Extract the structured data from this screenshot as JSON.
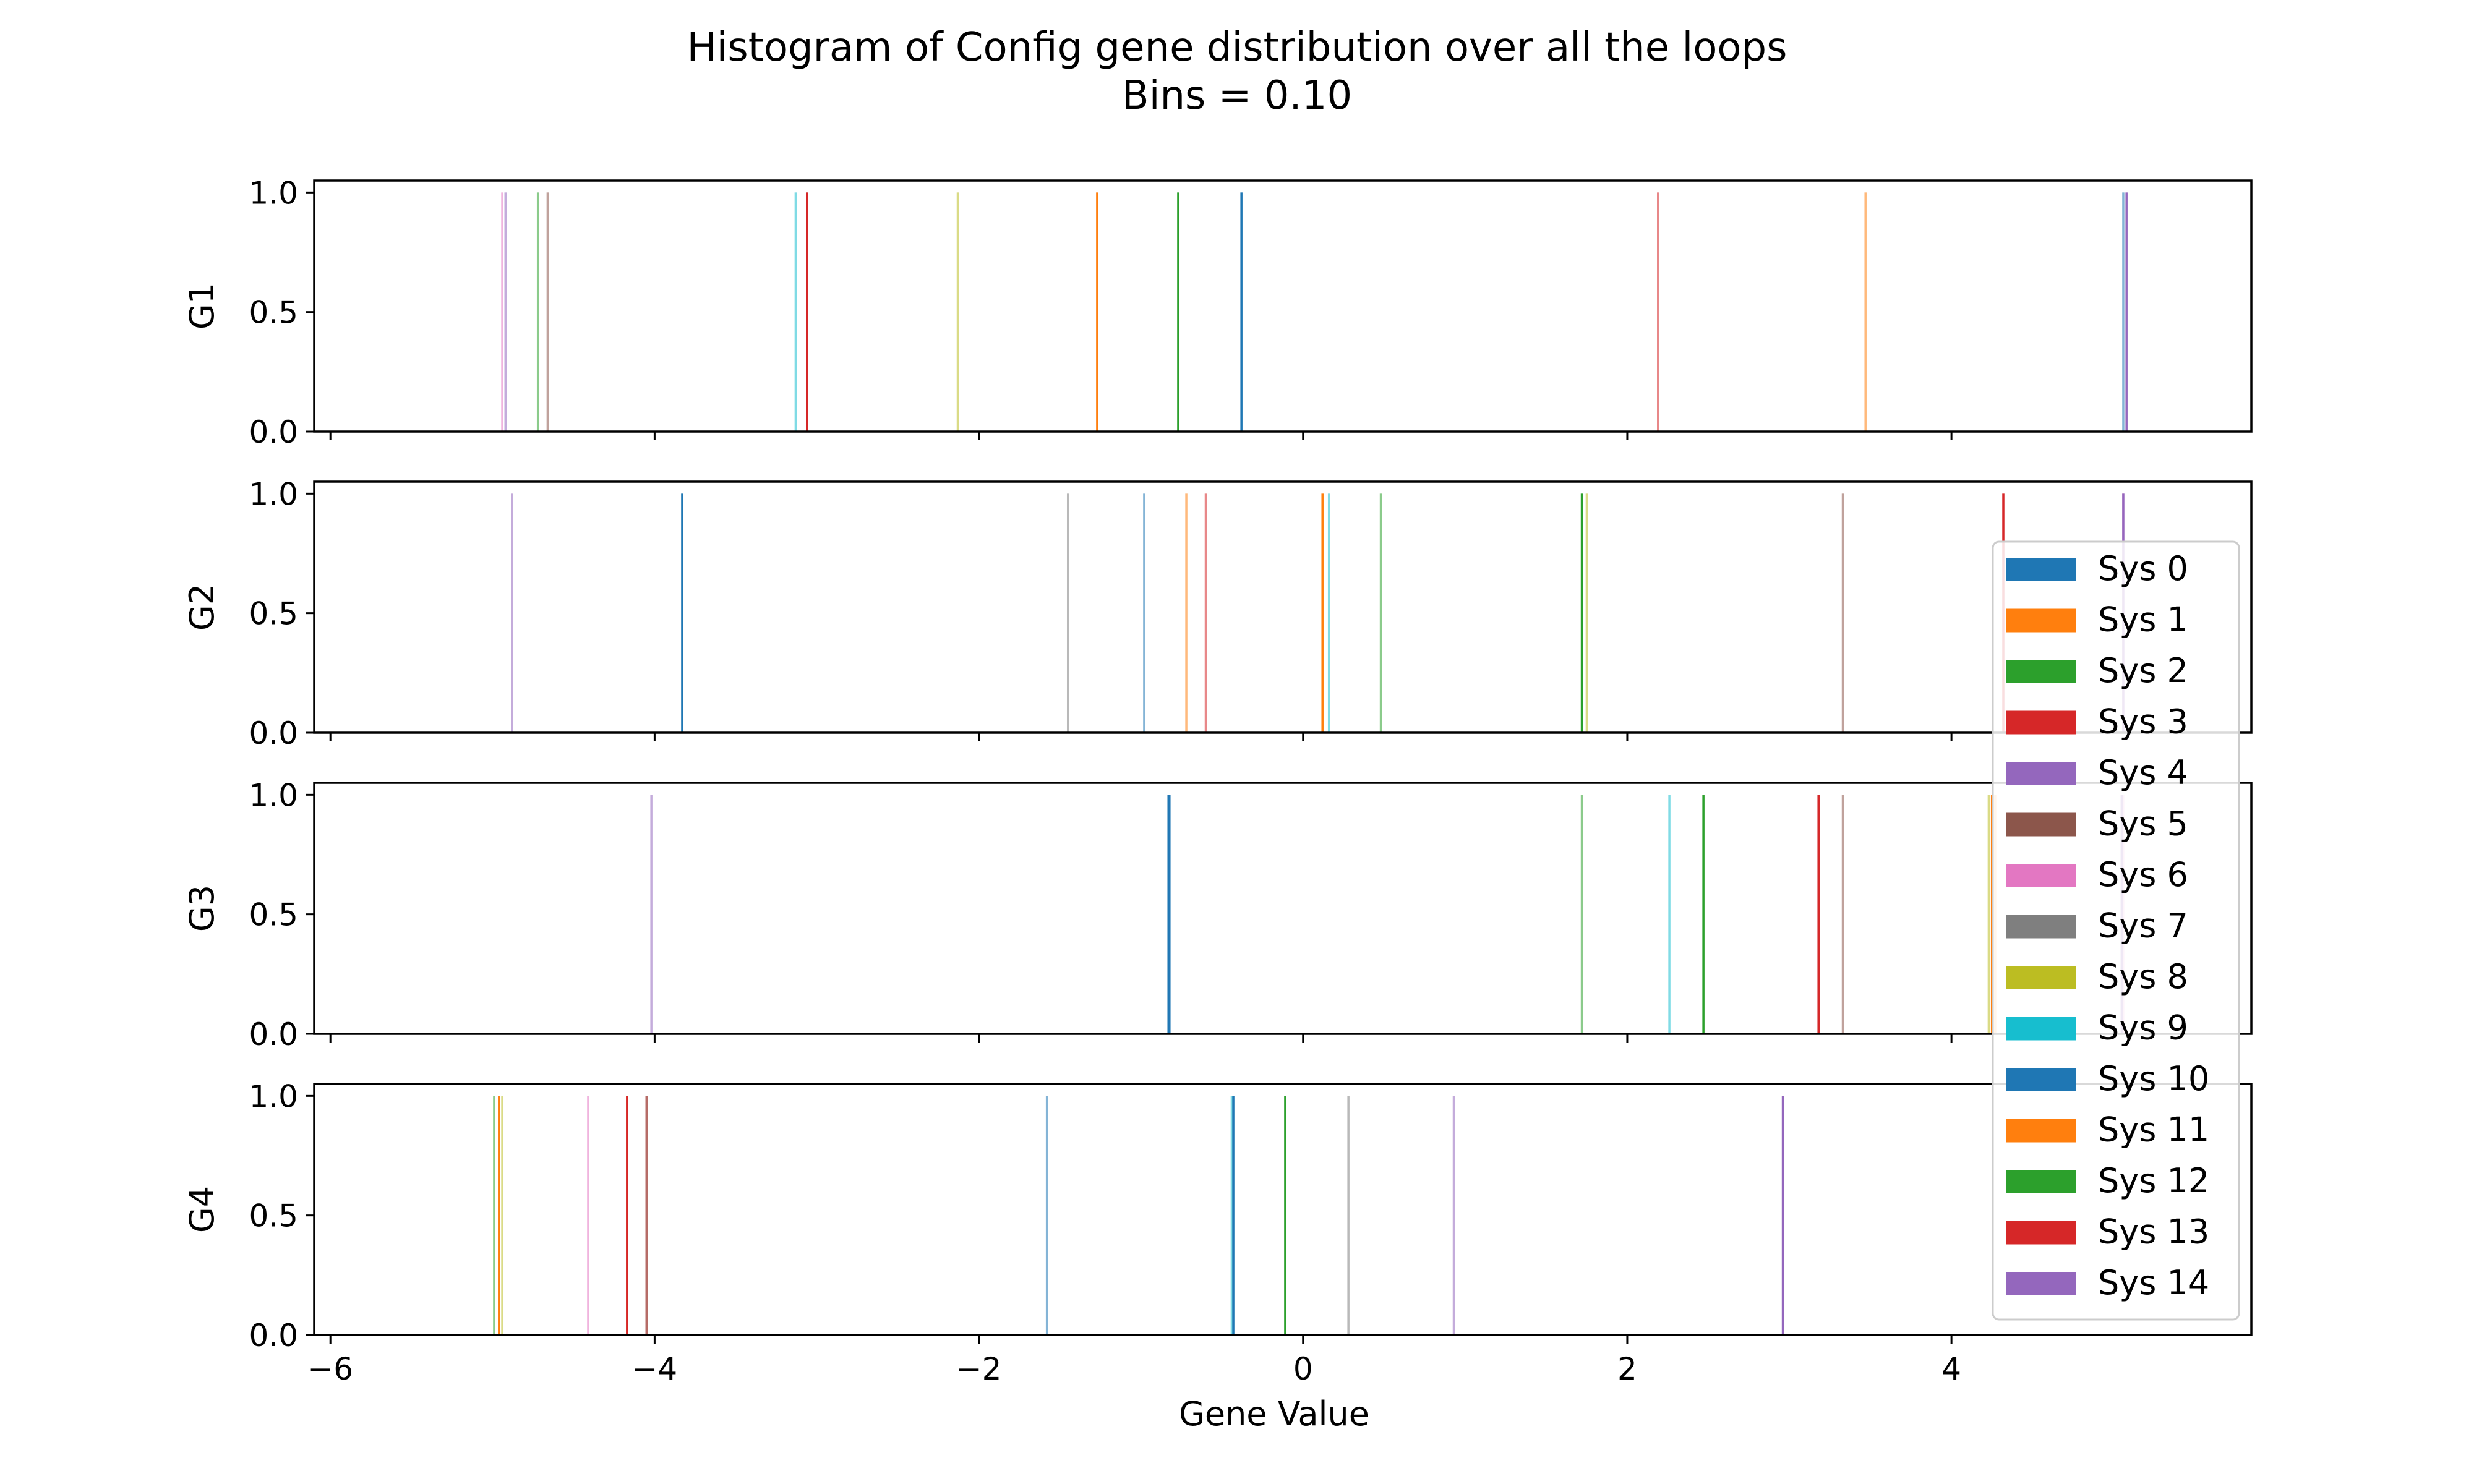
{
  "title": "Histogram of Config gene distribution over all the loops",
  "subtitle": "Bins = 0.10",
  "chart_data": {
    "type": "bar",
    "title": "Histogram of Config gene distribution over all the loops",
    "subtitle": "Bins = 0.10",
    "xlabel": "Gene Value",
    "xlim": [
      -6.1,
      5.85
    ],
    "xticks": [
      -6,
      -4,
      -2,
      0,
      2,
      4
    ],
    "xtick_labels": [
      "−6",
      "−4",
      "−2",
      "0",
      "2",
      "4"
    ],
    "ylim": [
      0,
      1.05
    ],
    "yticks": [
      0.0,
      0.5,
      1.0
    ],
    "ytick_labels": [
      "0.0",
      "0.5",
      "1.0"
    ],
    "grid": false,
    "legend_position": "right",
    "series_names": [
      "Sys 0",
      "Sys 1",
      "Sys 2",
      "Sys 3",
      "Sys 4",
      "Sys 5",
      "Sys 6",
      "Sys 7",
      "Sys 8",
      "Sys 9",
      "Sys 10",
      "Sys 11",
      "Sys 12",
      "Sys 13",
      "Sys 14"
    ],
    "colors": [
      "#1f77b4",
      "#ff7f0e",
      "#2ca02c",
      "#d62728",
      "#9467bd",
      "#8c564b",
      "#e377c2",
      "#7f7f7f",
      "#bcbd22",
      "#17becf",
      "#1f77b4",
      "#ff7f0e",
      "#2ca02c",
      "#d62728",
      "#9467bd"
    ],
    "panels": [
      {
        "ylabel": "G1",
        "bars": [
          {
            "series": 0,
            "x": 5.06,
            "y": 1.0
          },
          {
            "series": 1,
            "x": 3.47,
            "y": 1.0
          },
          {
            "series": 2,
            "x": -4.72,
            "y": 1.0
          },
          {
            "series": 3,
            "x": 2.19,
            "y": 1.0
          },
          {
            "series": 4,
            "x": -4.92,
            "y": 1.0
          },
          {
            "series": 5,
            "x": -4.66,
            "y": 1.0
          },
          {
            "series": 6,
            "x": -4.94,
            "y": 1.0
          },
          {
            "series": 7,
            "x": -3.06,
            "y": 1.0
          },
          {
            "series": 8,
            "x": -2.13,
            "y": 1.0
          },
          {
            "series": 9,
            "x": -3.13,
            "y": 1.0
          },
          {
            "series": 10,
            "x": -0.38,
            "y": 1.0
          },
          {
            "series": 11,
            "x": -1.27,
            "y": 1.0
          },
          {
            "series": 12,
            "x": -0.77,
            "y": 1.0
          },
          {
            "series": 13,
            "x": -3.06,
            "y": 1.0
          },
          {
            "series": 14,
            "x": 5.08,
            "y": 1.0
          }
        ]
      },
      {
        "ylabel": "G2",
        "bars": [
          {
            "series": 0,
            "x": -0.98,
            "y": 1.0
          },
          {
            "series": 1,
            "x": -0.72,
            "y": 1.0
          },
          {
            "series": 2,
            "x": 0.48,
            "y": 1.0
          },
          {
            "series": 3,
            "x": -0.6,
            "y": 1.0
          },
          {
            "series": 4,
            "x": -4.88,
            "y": 1.0
          },
          {
            "series": 5,
            "x": 3.33,
            "y": 1.0
          },
          {
            "series": 6,
            "x": 5.06,
            "y": 1.0
          },
          {
            "series": 7,
            "x": -1.45,
            "y": 1.0
          },
          {
            "series": 8,
            "x": 1.75,
            "y": 1.0
          },
          {
            "series": 9,
            "x": 0.16,
            "y": 1.0
          },
          {
            "series": 10,
            "x": -3.83,
            "y": 1.0
          },
          {
            "series": 11,
            "x": 0.12,
            "y": 1.0
          },
          {
            "series": 12,
            "x": 1.72,
            "y": 1.0
          },
          {
            "series": 13,
            "x": 4.32,
            "y": 1.0
          },
          {
            "series": 14,
            "x": 5.06,
            "y": 1.0
          }
        ]
      },
      {
        "ylabel": "G3",
        "bars": [
          {
            "series": 0,
            "x": -0.82,
            "y": 1.0
          },
          {
            "series": 1,
            "x": 4.27,
            "y": 1.0
          },
          {
            "series": 2,
            "x": 1.72,
            "y": 1.0
          },
          {
            "series": 3,
            "x": 3.18,
            "y": 1.0
          },
          {
            "series": 4,
            "x": -4.02,
            "y": 1.0
          },
          {
            "series": 5,
            "x": 3.33,
            "y": 1.0
          },
          {
            "series": 6,
            "x": 5.06,
            "y": 1.0
          },
          {
            "series": 7,
            "x": 3.18,
            "y": 1.0
          },
          {
            "series": 8,
            "x": 4.23,
            "y": 1.0
          },
          {
            "series": 9,
            "x": 2.26,
            "y": 1.0
          },
          {
            "series": 10,
            "x": -0.83,
            "y": 1.0
          },
          {
            "series": 11,
            "x": 4.25,
            "y": 1.0
          },
          {
            "series": 12,
            "x": 2.47,
            "y": 1.0
          },
          {
            "series": 13,
            "x": 3.18,
            "y": 1.0
          },
          {
            "series": 14,
            "x": 5.05,
            "y": 1.0
          }
        ]
      },
      {
        "ylabel": "G4",
        "bars": [
          {
            "series": 0,
            "x": -1.58,
            "y": 1.0
          },
          {
            "series": 1,
            "x": -4.17,
            "y": 1.0
          },
          {
            "series": 2,
            "x": -4.99,
            "y": 1.0
          },
          {
            "series": 3,
            "x": -4.05,
            "y": 1.0
          },
          {
            "series": 4,
            "x": 0.93,
            "y": 1.0
          },
          {
            "series": 5,
            "x": -4.05,
            "y": 1.0
          },
          {
            "series": 6,
            "x": -4.41,
            "y": 1.0
          },
          {
            "series": 7,
            "x": 0.28,
            "y": 1.0
          },
          {
            "series": 8,
            "x": -4.94,
            "y": 1.0
          },
          {
            "series": 9,
            "x": -0.44,
            "y": 1.0
          },
          {
            "series": 10,
            "x": -0.43,
            "y": 1.0
          },
          {
            "series": 11,
            "x": -4.96,
            "y": 1.0
          },
          {
            "series": 12,
            "x": -0.11,
            "y": 1.0
          },
          {
            "series": 13,
            "x": -4.17,
            "y": 1.0
          },
          {
            "series": 14,
            "x": 2.96,
            "y": 1.0
          }
        ]
      }
    ]
  }
}
